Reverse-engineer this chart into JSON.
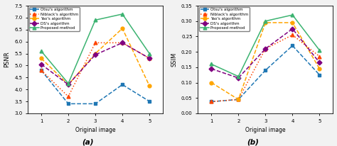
{
  "x": [
    1,
    2,
    3,
    4,
    5
  ],
  "psnr": {
    "otsu": [
      4.8,
      3.4,
      3.4,
      4.2,
      3.5
    ],
    "niblack": [
      4.8,
      3.7,
      5.95,
      5.95,
      5.3
    ],
    "yao": [
      5.3,
      4.2,
      5.5,
      6.55,
      4.15
    ],
    "ds": [
      5.05,
      4.2,
      5.45,
      5.95,
      5.3
    ],
    "proposed": [
      5.6,
      4.25,
      6.9,
      7.15,
      5.5
    ]
  },
  "ssim": {
    "otsu": [
      0.038,
      0.045,
      0.14,
      0.22,
      0.125
    ],
    "niblack": [
      0.038,
      0.045,
      0.21,
      0.255,
      0.185
    ],
    "yao": [
      0.1,
      0.045,
      0.295,
      0.295,
      0.145
    ],
    "ds": [
      0.145,
      0.115,
      0.21,
      0.275,
      0.165
    ],
    "proposed": [
      0.16,
      0.12,
      0.3,
      0.32,
      0.205
    ]
  },
  "colors": {
    "otsu": "#1F77B4",
    "niblack": "#FF4500",
    "yao": "#FFA500",
    "ds": "#800080",
    "proposed": "#3CB371"
  },
  "labels": {
    "otsu": "Otsu's algorithm",
    "niblack": "Niblack's algorithm",
    "yao": "Yao's algorithm",
    "ds": "DS's algorithm",
    "proposed": "Proposed method"
  },
  "markers": {
    "otsu": "s",
    "niblack": "^",
    "yao": "o",
    "ds": "D",
    "proposed": "^"
  },
  "linestyles": {
    "otsu": "--",
    "niblack": ":",
    "yao": "--",
    "ds": "--",
    "proposed": "-"
  },
  "psnr_ylim": [
    3.0,
    7.5
  ],
  "psnr_yticks": [
    3.0,
    3.5,
    4.0,
    4.5,
    5.0,
    5.5,
    6.0,
    6.5,
    7.0,
    7.5
  ],
  "ssim_ylim": [
    0.0,
    0.35
  ],
  "ssim_yticks": [
    0.0,
    0.05,
    0.1,
    0.15,
    0.2,
    0.25,
    0.3,
    0.35
  ],
  "xlabel": "Original image",
  "psnr_ylabel": "PSNR",
  "ssim_ylabel": "SSIM",
  "caption_a": "(a)",
  "caption_b": "(b)",
  "bg_color": "#F2F2F2"
}
